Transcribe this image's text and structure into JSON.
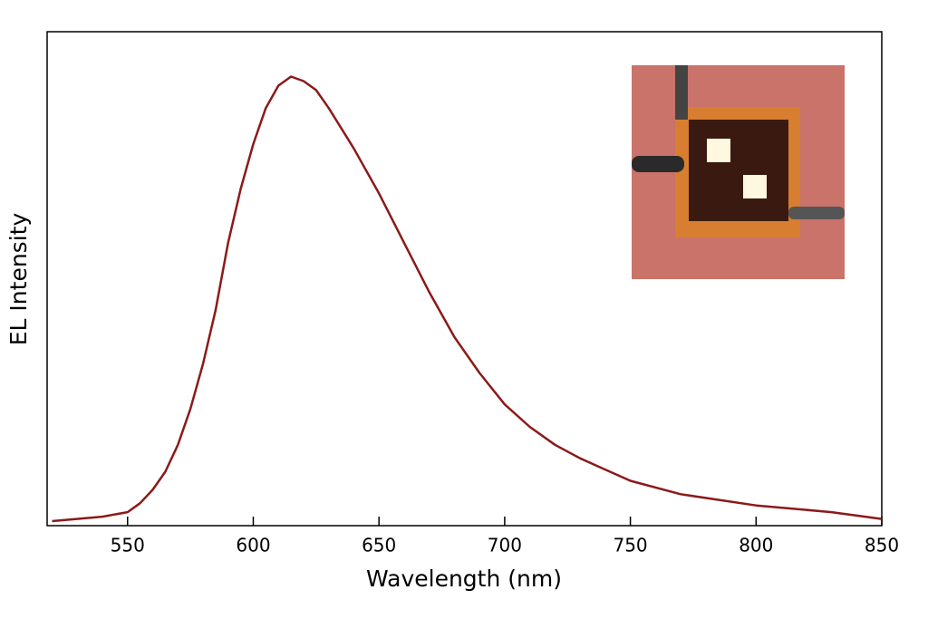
{
  "chart_data": {
    "type": "line",
    "x_label": "Wavelength (nm)",
    "y_label": "EL Intensity",
    "x": [
      520,
      540,
      550,
      555,
      560,
      565,
      570,
      575,
      580,
      585,
      590,
      595,
      600,
      605,
      610,
      615,
      620,
      625,
      630,
      640,
      650,
      660,
      670,
      680,
      690,
      700,
      710,
      720,
      730,
      740,
      750,
      770,
      800,
      830,
      850
    ],
    "series": [
      {
        "color": "#8b1a1a",
        "values": [
          0.01,
          0.02,
          0.03,
          0.05,
          0.08,
          0.12,
          0.18,
          0.26,
          0.36,
          0.48,
          0.63,
          0.75,
          0.85,
          0.93,
          0.98,
          1.0,
          0.99,
          0.97,
          0.93,
          0.84,
          0.74,
          0.63,
          0.52,
          0.42,
          0.34,
          0.27,
          0.22,
          0.18,
          0.15,
          0.125,
          0.1,
          0.07,
          0.045,
          0.03,
          0.015
        ]
      }
    ],
    "xlim": [
      518,
      850
    ],
    "xticks": [
      550,
      600,
      650,
      700,
      750,
      800,
      850
    ],
    "ylim": [
      0,
      1.1
    ]
  }
}
